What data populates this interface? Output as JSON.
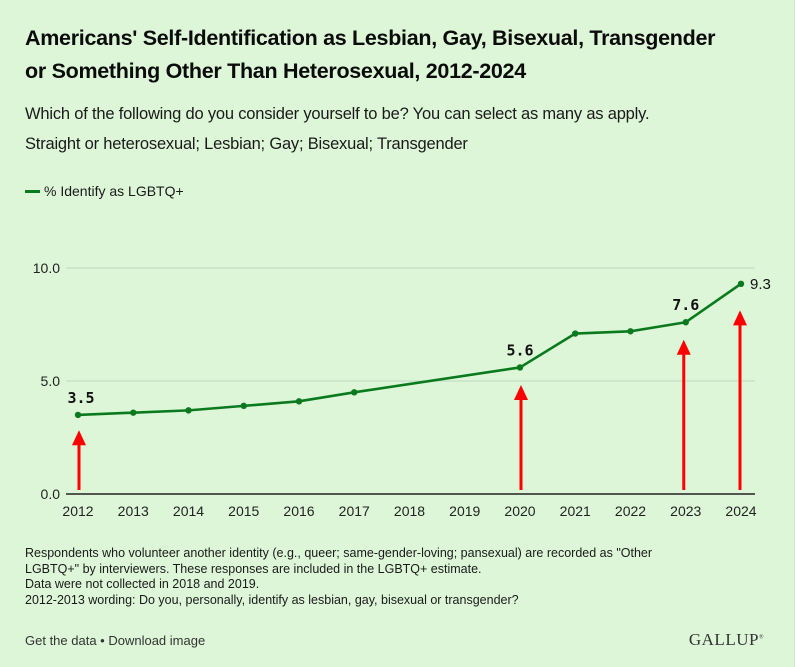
{
  "header": {
    "title_line1": "Americans' Self-Identification as Lesbian, Gay, Bisexual, Transgender",
    "title_line2": "or Something Other Than Heterosexual, 2012-2024",
    "subtitle_line1": "Which of the following do you consider yourself to be? You can select as many as apply.",
    "subtitle_line2": "Straight or heterosexual; Lesbian; Gay; Bisexual; Transgender"
  },
  "colors": {
    "background": "#ddf6d8",
    "series": "#0a7a1e",
    "annotation_arrow": "#ff0000",
    "gridline": "#c5dcc0",
    "axis": "#222222"
  },
  "chart_data": {
    "type": "line",
    "title": "Americans' Self-Identification as Lesbian, Gay, Bisexual, Transgender or Something Other Than Heterosexual, 2012-2024",
    "xlabel": "",
    "ylabel": "",
    "x": [
      2012,
      2013,
      2014,
      2015,
      2016,
      2017,
      2020,
      2021,
      2022,
      2023,
      2024
    ],
    "x_ticks": [
      "2012",
      "2013",
      "2014",
      "2015",
      "2016",
      "2017",
      "2018",
      "2019",
      "2020",
      "2021",
      "2022",
      "2023",
      "2024"
    ],
    "y_ticks": [
      "0.0",
      "5.0",
      "10.0"
    ],
    "ylim": [
      0,
      10
    ],
    "xlim": [
      2012,
      2024
    ],
    "grid": true,
    "legend_position": "top-left",
    "series": [
      {
        "name": "% Identify as LGBTQ+",
        "values": [
          3.5,
          3.6,
          3.7,
          3.9,
          4.1,
          4.5,
          5.6,
          7.1,
          7.2,
          7.6,
          9.3
        ]
      }
    ],
    "data_labels": [
      {
        "x": 2012,
        "label": "3.5"
      },
      {
        "x": 2020,
        "label": "5.6"
      },
      {
        "x": 2023,
        "label": "7.6"
      },
      {
        "x": 2024,
        "label": "9.3"
      }
    ],
    "annotations": {
      "type": "red-up-arrows",
      "x": [
        2012,
        2020,
        2023,
        2024
      ]
    }
  },
  "footnotes": [
    "Respondents who volunteer another identity (e.g., queer; same-gender-loving; pansexual) are recorded as \"Other",
    "LGBTQ+\" by interviewers. These responses are included in the LGBTQ+ estimate.",
    "Data were not collected in 2018 and 2019.",
    "2012-2013 wording: Do you, personally, identify as lesbian, gay, bisexual or transgender?"
  ],
  "footer": {
    "get_data": "Get the data",
    "separator": " • ",
    "download": "Download image",
    "logo": "GALLUP",
    "logo_mark": "®"
  }
}
